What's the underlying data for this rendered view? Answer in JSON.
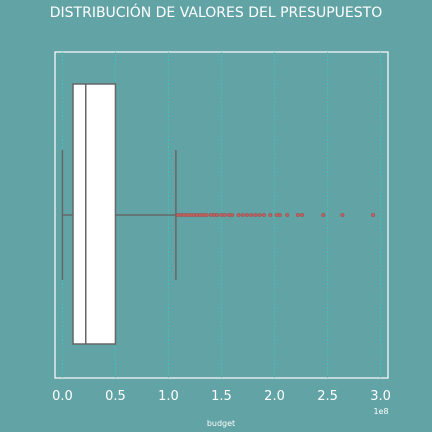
{
  "chart_data": {
    "type": "boxplot",
    "title": "DISTRIBUCIÓN DE VALORES DEL PRESUPUESTO",
    "xlabel": "budget",
    "x_offset_label": "1e8",
    "xlim": [
      -0.07,
      3.07
    ],
    "xticks": [
      0.0,
      0.5,
      1.0,
      1.5,
      2.0,
      2.5,
      3.0
    ],
    "xtick_labels": [
      "0.0",
      "0.5",
      "1.0",
      "1.5",
      "2.0",
      "2.5",
      "3.0"
    ],
    "grid": "vertical-dotted",
    "box": {
      "min": 0.0,
      "q1": 0.1,
      "median": 0.22,
      "q3": 0.5,
      "whisker_low": 0.0,
      "whisker_high": 1.07
    },
    "outliers": [
      1.09,
      1.12,
      1.15,
      1.18,
      1.21,
      1.24,
      1.27,
      1.3,
      1.33,
      1.36,
      1.4,
      1.43,
      1.46,
      1.5,
      1.53,
      1.57,
      1.6,
      1.66,
      1.7,
      1.74,
      1.78,
      1.82,
      1.86,
      1.9,
      1.96,
      2.02,
      2.05,
      2.12,
      2.22,
      2.26,
      2.46,
      2.64,
      2.93
    ],
    "colors": {
      "background": "#62a4a6",
      "box_fill": "#ffffff",
      "box_edge": "#666666",
      "outlier": "#c0605e",
      "grid": "#2fd0c0",
      "frame": "#ffffff"
    }
  }
}
